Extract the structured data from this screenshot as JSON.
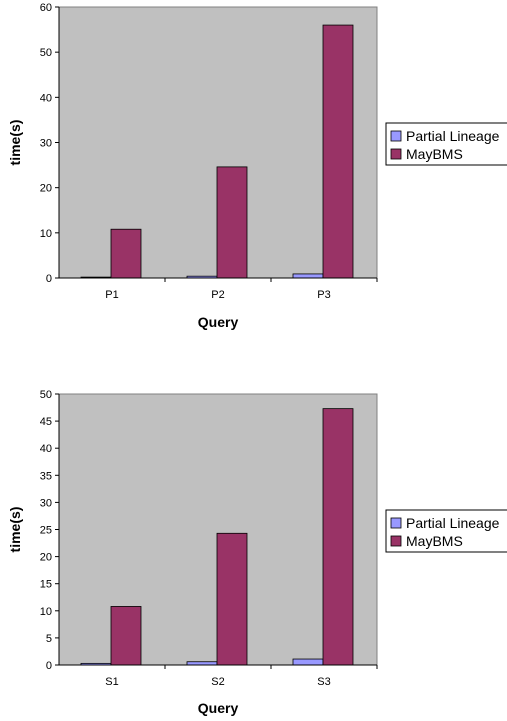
{
  "chart_data": [
    {
      "type": "bar",
      "categories": [
        "P1",
        "P2",
        "P3"
      ],
      "series": [
        {
          "name": "Partial Lineage",
          "values": [
            0.2,
            0.4,
            0.9
          ],
          "color": "#9999ff"
        },
        {
          "name": "MayBMS",
          "values": [
            10.8,
            24.6,
            56.0
          ],
          "color": "#993366"
        }
      ],
      "xlabel": "Query",
      "ylabel": "time(s)",
      "ylim": [
        0,
        60
      ],
      "yticks": [
        0,
        10,
        20,
        30,
        40,
        50,
        60
      ],
      "legend": "right",
      "plot_background": "#c0c0c0"
    },
    {
      "type": "bar",
      "categories": [
        "S1",
        "S2",
        "S3"
      ],
      "series": [
        {
          "name": "Partial Lineage",
          "values": [
            0.3,
            0.6,
            1.1
          ],
          "color": "#9999ff"
        },
        {
          "name": "MayBMS",
          "values": [
            10.8,
            24.3,
            47.3
          ],
          "color": "#993366"
        }
      ],
      "xlabel": "Query",
      "ylabel": "time(s)",
      "ylim": [
        0,
        50
      ],
      "yticks": [
        0,
        5,
        10,
        15,
        20,
        25,
        30,
        35,
        40,
        45,
        50
      ],
      "legend": "right",
      "plot_background": "#c0c0c0"
    }
  ]
}
